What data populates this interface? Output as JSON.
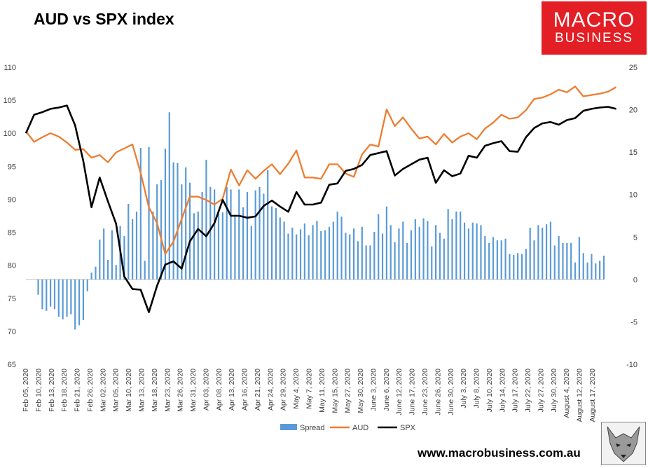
{
  "title": "AUD vs SPX index",
  "logo": {
    "line1": "MACRO",
    "line2": "BUSINESS"
  },
  "website": "www.macrobusiness.com.au",
  "colors": {
    "spread": "#5b9bd5",
    "aud": "#ed7d31",
    "spx": "#000000",
    "logo_bg": "#e31e24"
  },
  "chart_data": {
    "type": "bar",
    "title": "AUD vs SPX index",
    "left_axis": {
      "ticks": [
        65,
        70,
        75,
        80,
        85,
        90,
        95,
        100,
        105,
        110
      ],
      "range": [
        65,
        110
      ]
    },
    "right_axis": {
      "ticks": [
        -10,
        -5,
        0,
        5,
        10,
        15,
        20,
        25
      ],
      "range": [
        -10,
        25
      ]
    },
    "x_tick_labels": [
      "Feb 05, 2020",
      "Feb 10, 2020",
      "Feb 13, 2020",
      "Feb 18, 2020",
      "Feb 21, 2020",
      "Feb 26, 2020",
      "Mar 02, 2020",
      "Mar 05, 2020",
      "Mar 10, 2020",
      "Mar 13, 2020",
      "Mar 18, 2020",
      "Mar 23, 2020",
      "Mar 26, 2020",
      "Mar 31, 2020",
      "Apr 03, 2020",
      "Apr 08, 2020",
      "Apr 13, 2020",
      "Apr 16, 2020",
      "Apr 21, 2020",
      "Apr 24, 2020",
      "Apr 29, 2020",
      "May 4, 2020",
      "May 7, 2020",
      "May 11, 2020",
      "May 15, 2020",
      "May 27, 2020",
      "May 30, 2020",
      "June 3, 2020",
      "June 6, 2020",
      "June 12, 2020",
      "June 17, 2020",
      "June 23, 2020",
      "June 26, 2020",
      "June 30, 2020",
      "July 3, 2020",
      "July 8, 2020",
      "July 10, 2020",
      "July 14, 2020",
      "July 17, 2020",
      "July 22, 2020",
      "July 27, 2020",
      "July 30, 2020",
      "August 4, 2020",
      "August 12, 2020",
      "August 17, 2020"
    ],
    "legend": [
      "Spread",
      "AUD",
      "SPX"
    ],
    "legend_position": "bottom",
    "grid": false,
    "series": [
      {
        "name": "Spread",
        "type": "bar",
        "axis": "right",
        "values": [
          null,
          null,
          null,
          -1.8,
          -3.5,
          -3.7,
          -3.2,
          -3.5,
          -4.4,
          -4.7,
          -4.4,
          -4.1,
          -5.9,
          -5.4,
          -4.8,
          -1.4,
          0.8,
          1.5,
          4.7,
          6.0,
          2.3,
          5.8,
          1.7,
          6.3,
          5.1,
          8.9,
          7.1,
          8.0,
          15.5,
          2.2,
          15.6,
          8.0,
          11.2,
          11.7,
          15.4,
          19.7,
          13.8,
          13.7,
          11.2,
          13.2,
          11.4,
          7.8,
          8.0,
          10.3,
          14.1,
          10.9,
          10.6,
          7.8,
          7.9,
          10.9,
          10.6,
          7.6,
          10.6,
          8.5,
          10.3,
          6.3,
          10.5,
          10.9,
          10.1,
          12.9,
          8.6,
          8.4,
          7.3,
          6.8,
          5.4,
          6.1,
          5.3,
          5.9,
          6.6,
          5.2,
          6.4,
          6.9,
          5.7,
          5.8,
          6.2,
          6.8,
          8.0,
          7.4,
          5.5,
          5.3,
          6.0,
          4.5,
          6.2,
          4.0,
          4.0,
          5.6,
          7.7,
          5.4,
          8.6,
          6.4,
          4.4,
          6.0,
          6.8,
          4.3,
          5.8,
          7.1,
          6.2,
          7.2,
          6.9,
          3.9,
          6.4,
          5.5,
          4.8,
          8.3,
          7.1,
          8.0,
          8.0,
          6.7,
          6.0,
          6.7,
          6.6,
          6.4,
          5.1,
          4.3,
          5.0,
          4.6,
          4.6,
          4.8,
          3.0,
          2.9,
          3.1,
          3.0,
          3.6,
          6.1,
          4.6,
          6.4,
          6.1,
          6.5,
          6.8,
          4.0,
          5.1,
          4.3,
          4.3,
          4.3,
          2.0,
          5.0,
          3.1,
          2.0,
          3.0,
          1.9,
          2.2,
          2.8
        ]
      },
      {
        "name": "AUD",
        "type": "line",
        "axis": "left",
        "x": [
          0,
          2,
          4,
          6,
          8,
          10,
          12,
          14,
          16,
          18,
          20,
          22,
          24,
          26,
          28,
          30,
          32,
          34,
          36,
          38,
          40,
          42,
          44,
          46,
          48,
          50,
          52,
          54,
          56,
          58,
          60,
          62,
          64,
          66,
          68,
          70,
          72,
          74,
          76,
          78,
          80,
          82,
          84,
          86,
          88,
          90,
          92,
          94,
          96,
          98,
          100,
          102,
          104,
          106,
          108,
          110,
          112,
          114,
          116,
          118,
          120,
          122,
          124,
          126,
          128,
          130,
          132,
          134,
          136,
          138,
          140,
          142,
          144
        ],
        "values": [
          100.3,
          98.7,
          99.4,
          100.0,
          99.5,
          98.6,
          97.5,
          97.6,
          96.3,
          96.7,
          95.6,
          97.1,
          97.7,
          98.3,
          94.0,
          88.8,
          86.4,
          81.7,
          83.6,
          87.0,
          90.4,
          90.4,
          89.9,
          89.2,
          90.1,
          94.5,
          92.1,
          94.4,
          93.1,
          94.3,
          95.3,
          93.8,
          95.4,
          97.4,
          93.3,
          93.3,
          93.1,
          95.3,
          95.3,
          93.9,
          93.4,
          96.8,
          98.3,
          98.0,
          103.6,
          101.1,
          102.4,
          100.7,
          99.2,
          99.5,
          98.3,
          99.9,
          98.6,
          99.5,
          100.0,
          99.1,
          100.7,
          101.6,
          102.8,
          102.2,
          102.4,
          103.5,
          105.2,
          105.4,
          105.9,
          106.6,
          106.2,
          107.1,
          105.6,
          105.8,
          106.0,
          106.3,
          107.0
        ]
      },
      {
        "name": "SPX",
        "type": "line",
        "axis": "left",
        "x": [
          0,
          2,
          4,
          6,
          8,
          10,
          12,
          14,
          16,
          18,
          20,
          22,
          24,
          26,
          28,
          30,
          32,
          34,
          36,
          38,
          40,
          42,
          44,
          46,
          48,
          50,
          52,
          54,
          56,
          58,
          60,
          62,
          64,
          66,
          68,
          70,
          72,
          74,
          76,
          78,
          80,
          82,
          84,
          86,
          88,
          90,
          92,
          94,
          96,
          98,
          100,
          102,
          104,
          106,
          108,
          110,
          112,
          114,
          116,
          118,
          120,
          122,
          124,
          126,
          128,
          130,
          132,
          134,
          136,
          138,
          140,
          142,
          144
        ],
        "values": [
          100.0,
          102.8,
          103.2,
          103.7,
          103.9,
          104.2,
          101.2,
          95.8,
          88.8,
          93.3,
          89.7,
          86.3,
          78.3,
          76.4,
          76.3,
          72.9,
          76.9,
          80.1,
          80.6,
          79.5,
          83.6,
          85.5,
          84.4,
          86.4,
          89.9,
          87.5,
          87.5,
          87.2,
          87.4,
          89.0,
          89.8,
          88.9,
          88.1,
          91.1,
          89.2,
          89.2,
          89.5,
          92.2,
          92.4,
          94.3,
          94.6,
          95.2,
          96.7,
          97.0,
          97.3,
          93.6,
          94.6,
          95.3,
          96.0,
          96.3,
          92.5,
          94.4,
          93.5,
          93.9,
          96.6,
          96.3,
          98.1,
          98.5,
          98.8,
          97.3,
          97.2,
          99.4,
          100.8,
          101.5,
          101.7,
          101.3,
          102.0,
          102.3,
          103.4,
          103.7,
          103.9,
          104.0,
          103.7
        ]
      }
    ]
  }
}
